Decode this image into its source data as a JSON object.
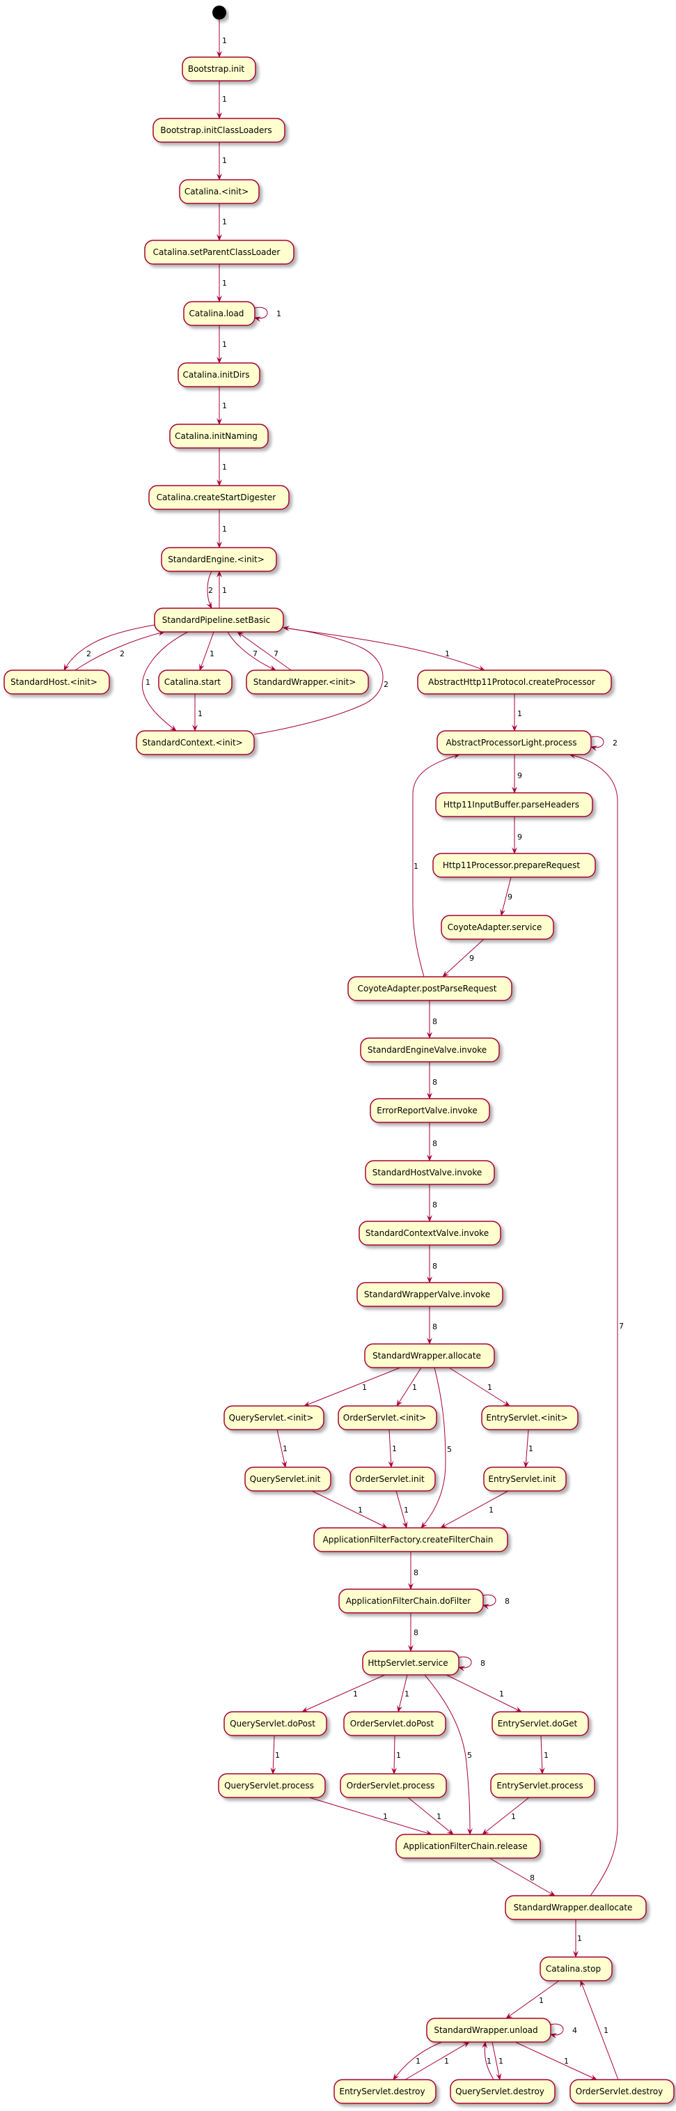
{
  "colors": {
    "node_fill": "#FEFECE",
    "node_border": "#A80036",
    "edge": "#A80036",
    "start": "#000000"
  },
  "nodes": [
    {
      "id": "BI",
      "label": "Bootstrap.init"
    },
    {
      "id": "ICL",
      "label": "Bootstrap.initClassLoaders"
    },
    {
      "id": "CI",
      "label": "Catalina.<init>"
    },
    {
      "id": "SPCL",
      "label": "Catalina.setParentClassLoader"
    },
    {
      "id": "LOAD",
      "label": "Catalina.load"
    },
    {
      "id": "DIRS",
      "label": "Catalina.initDirs"
    },
    {
      "id": "NAM",
      "label": "Catalina.initNaming"
    },
    {
      "id": "CSD",
      "label": "Catalina.createStartDigester"
    },
    {
      "id": "SE",
      "label": "StandardEngine.<init>"
    },
    {
      "id": "SB",
      "label": "StandardPipeline.setBasic"
    },
    {
      "id": "SH",
      "label": "StandardHost.<init>"
    },
    {
      "id": "CS",
      "label": "Catalina.start"
    },
    {
      "id": "SW",
      "label": "StandardWrapper.<init>"
    },
    {
      "id": "AHP",
      "label": "AbstractHttp11Protocol.createProcessor"
    },
    {
      "id": "SC",
      "label": "StandardContext.<init>"
    },
    {
      "id": "APL",
      "label": "AbstractProcessorLight.process"
    },
    {
      "id": "PH",
      "label": "Http11InputBuffer.parseHeaders"
    },
    {
      "id": "PR",
      "label": "Http11Processor.prepareRequest"
    },
    {
      "id": "CAS",
      "label": "CoyoteAdapter.service"
    },
    {
      "id": "PPR",
      "label": "CoyoteAdapter.postParseRequest"
    },
    {
      "id": "EV",
      "label": "StandardEngineValve.invoke"
    },
    {
      "id": "ERV",
      "label": "ErrorReportValve.invoke"
    },
    {
      "id": "HV",
      "label": "StandardHostValve.invoke"
    },
    {
      "id": "CV",
      "label": "StandardContextValve.invoke"
    },
    {
      "id": "WV",
      "label": "StandardWrapperValve.invoke"
    },
    {
      "id": "AL",
      "label": "StandardWrapper.allocate"
    },
    {
      "id": "QI",
      "label": "QueryServlet.<init>"
    },
    {
      "id": "OI",
      "label": "OrderServlet.<init>"
    },
    {
      "id": "EI",
      "label": "EntryServlet.<init>"
    },
    {
      "id": "QIN",
      "label": "QueryServlet.init"
    },
    {
      "id": "OIN",
      "label": "OrderServlet.init"
    },
    {
      "id": "EIN",
      "label": "EntryServlet.init"
    },
    {
      "id": "CFC",
      "label": "ApplicationFilterFactory.createFilterChain"
    },
    {
      "id": "DF",
      "label": "ApplicationFilterChain.doFilter"
    },
    {
      "id": "HS",
      "label": "HttpServlet.service"
    },
    {
      "id": "QDP",
      "label": "QueryServlet.doPost"
    },
    {
      "id": "ODP",
      "label": "OrderServlet.doPost"
    },
    {
      "id": "EDG",
      "label": "EntryServlet.doGet"
    },
    {
      "id": "QP",
      "label": "QueryServlet.process"
    },
    {
      "id": "OP",
      "label": "OrderServlet.process"
    },
    {
      "id": "EP",
      "label": "EntryServlet.process"
    },
    {
      "id": "REL",
      "label": "ApplicationFilterChain.release"
    },
    {
      "id": "DEAL",
      "label": "StandardWrapper.deallocate"
    },
    {
      "id": "STOP",
      "label": "Catalina.stop"
    },
    {
      "id": "UNL",
      "label": "StandardWrapper.unload"
    },
    {
      "id": "ED",
      "label": "EntryServlet.destroy"
    },
    {
      "id": "QD",
      "label": "QueryServlet.destroy"
    },
    {
      "id": "OD",
      "label": "OrderServlet.destroy"
    }
  ],
  "edges": [
    {
      "from": "start",
      "to": "BI",
      "label": "1"
    },
    {
      "from": "BI",
      "to": "ICL",
      "label": "1"
    },
    {
      "from": "ICL",
      "to": "CI",
      "label": "1"
    },
    {
      "from": "CI",
      "to": "SPCL",
      "label": "1"
    },
    {
      "from": "SPCL",
      "to": "LOAD",
      "label": "1"
    },
    {
      "from": "LOAD",
      "to": "LOAD",
      "label": "1"
    },
    {
      "from": "LOAD",
      "to": "DIRS",
      "label": "1"
    },
    {
      "from": "DIRS",
      "to": "NAM",
      "label": "1"
    },
    {
      "from": "NAM",
      "to": "CSD",
      "label": "1"
    },
    {
      "from": "CSD",
      "to": "SE",
      "label": "1"
    },
    {
      "from": "SE",
      "to": "SB",
      "label": "2"
    },
    {
      "from": "SB",
      "to": "SE",
      "label": "1"
    },
    {
      "from": "SB",
      "to": "SH",
      "label": "2"
    },
    {
      "from": "SH",
      "to": "SB",
      "label": "2"
    },
    {
      "from": "SB",
      "to": "SC",
      "label": "1"
    },
    {
      "from": "SB",
      "to": "CS",
      "label": "1"
    },
    {
      "from": "CS",
      "to": "SC",
      "label": "1"
    },
    {
      "from": "SB",
      "to": "SW",
      "label": "7"
    },
    {
      "from": "SW",
      "to": "SB",
      "label": "7"
    },
    {
      "from": "SC",
      "to": "SB",
      "label": "2"
    },
    {
      "from": "SB",
      "to": "AHP",
      "label": "1"
    },
    {
      "from": "AHP",
      "to": "APL",
      "label": "1"
    },
    {
      "from": "APL",
      "to": "APL",
      "label": "2"
    },
    {
      "from": "APL",
      "to": "PH",
      "label": "9"
    },
    {
      "from": "PH",
      "to": "PR",
      "label": "9"
    },
    {
      "from": "PR",
      "to": "CAS",
      "label": "9"
    },
    {
      "from": "CAS",
      "to": "PPR",
      "label": "9"
    },
    {
      "from": "PPR",
      "to": "APL",
      "label": "1"
    },
    {
      "from": "PPR",
      "to": "EV",
      "label": "8"
    },
    {
      "from": "EV",
      "to": "ERV",
      "label": "8"
    },
    {
      "from": "ERV",
      "to": "HV",
      "label": "8"
    },
    {
      "from": "HV",
      "to": "CV",
      "label": "8"
    },
    {
      "from": "CV",
      "to": "WV",
      "label": "8"
    },
    {
      "from": "WV",
      "to": "AL",
      "label": "8"
    },
    {
      "from": "AL",
      "to": "QI",
      "label": "1"
    },
    {
      "from": "AL",
      "to": "OI",
      "label": "1"
    },
    {
      "from": "AL",
      "to": "CFC",
      "label": "5"
    },
    {
      "from": "AL",
      "to": "EI",
      "label": "1"
    },
    {
      "from": "QI",
      "to": "QIN",
      "label": "1"
    },
    {
      "from": "OI",
      "to": "OIN",
      "label": "1"
    },
    {
      "from": "EI",
      "to": "EIN",
      "label": "1"
    },
    {
      "from": "QIN",
      "to": "CFC",
      "label": "1"
    },
    {
      "from": "OIN",
      "to": "CFC",
      "label": "1"
    },
    {
      "from": "EIN",
      "to": "CFC",
      "label": "1"
    },
    {
      "from": "CFC",
      "to": "DF",
      "label": "8"
    },
    {
      "from": "DF",
      "to": "DF",
      "label": "8"
    },
    {
      "from": "DF",
      "to": "HS",
      "label": "8"
    },
    {
      "from": "HS",
      "to": "HS",
      "label": "8"
    },
    {
      "from": "HS",
      "to": "QDP",
      "label": "1"
    },
    {
      "from": "HS",
      "to": "ODP",
      "label": "1"
    },
    {
      "from": "HS",
      "to": "REL",
      "label": "5"
    },
    {
      "from": "HS",
      "to": "EDG",
      "label": "1"
    },
    {
      "from": "QDP",
      "to": "QP",
      "label": "1"
    },
    {
      "from": "ODP",
      "to": "OP",
      "label": "1"
    },
    {
      "from": "EDG",
      "to": "EP",
      "label": "1"
    },
    {
      "from": "QP",
      "to": "REL",
      "label": "1"
    },
    {
      "from": "OP",
      "to": "REL",
      "label": "1"
    },
    {
      "from": "EP",
      "to": "REL",
      "label": "1"
    },
    {
      "from": "REL",
      "to": "DEAL",
      "label": "8"
    },
    {
      "from": "DEAL",
      "to": "APL",
      "label": "7"
    },
    {
      "from": "DEAL",
      "to": "STOP",
      "label": "1"
    },
    {
      "from": "STOP",
      "to": "UNL",
      "label": "1"
    },
    {
      "from": "UNL",
      "to": "UNL",
      "label": "4"
    },
    {
      "from": "UNL",
      "to": "ED",
      "label": "1"
    },
    {
      "from": "ED",
      "to": "UNL",
      "label": "1"
    },
    {
      "from": "QD",
      "to": "UNL",
      "label": "1"
    },
    {
      "from": "UNL",
      "to": "QD",
      "label": "1"
    },
    {
      "from": "UNL",
      "to": "OD",
      "label": "1"
    },
    {
      "from": "OD",
      "to": "STOP",
      "label": "1"
    }
  ]
}
